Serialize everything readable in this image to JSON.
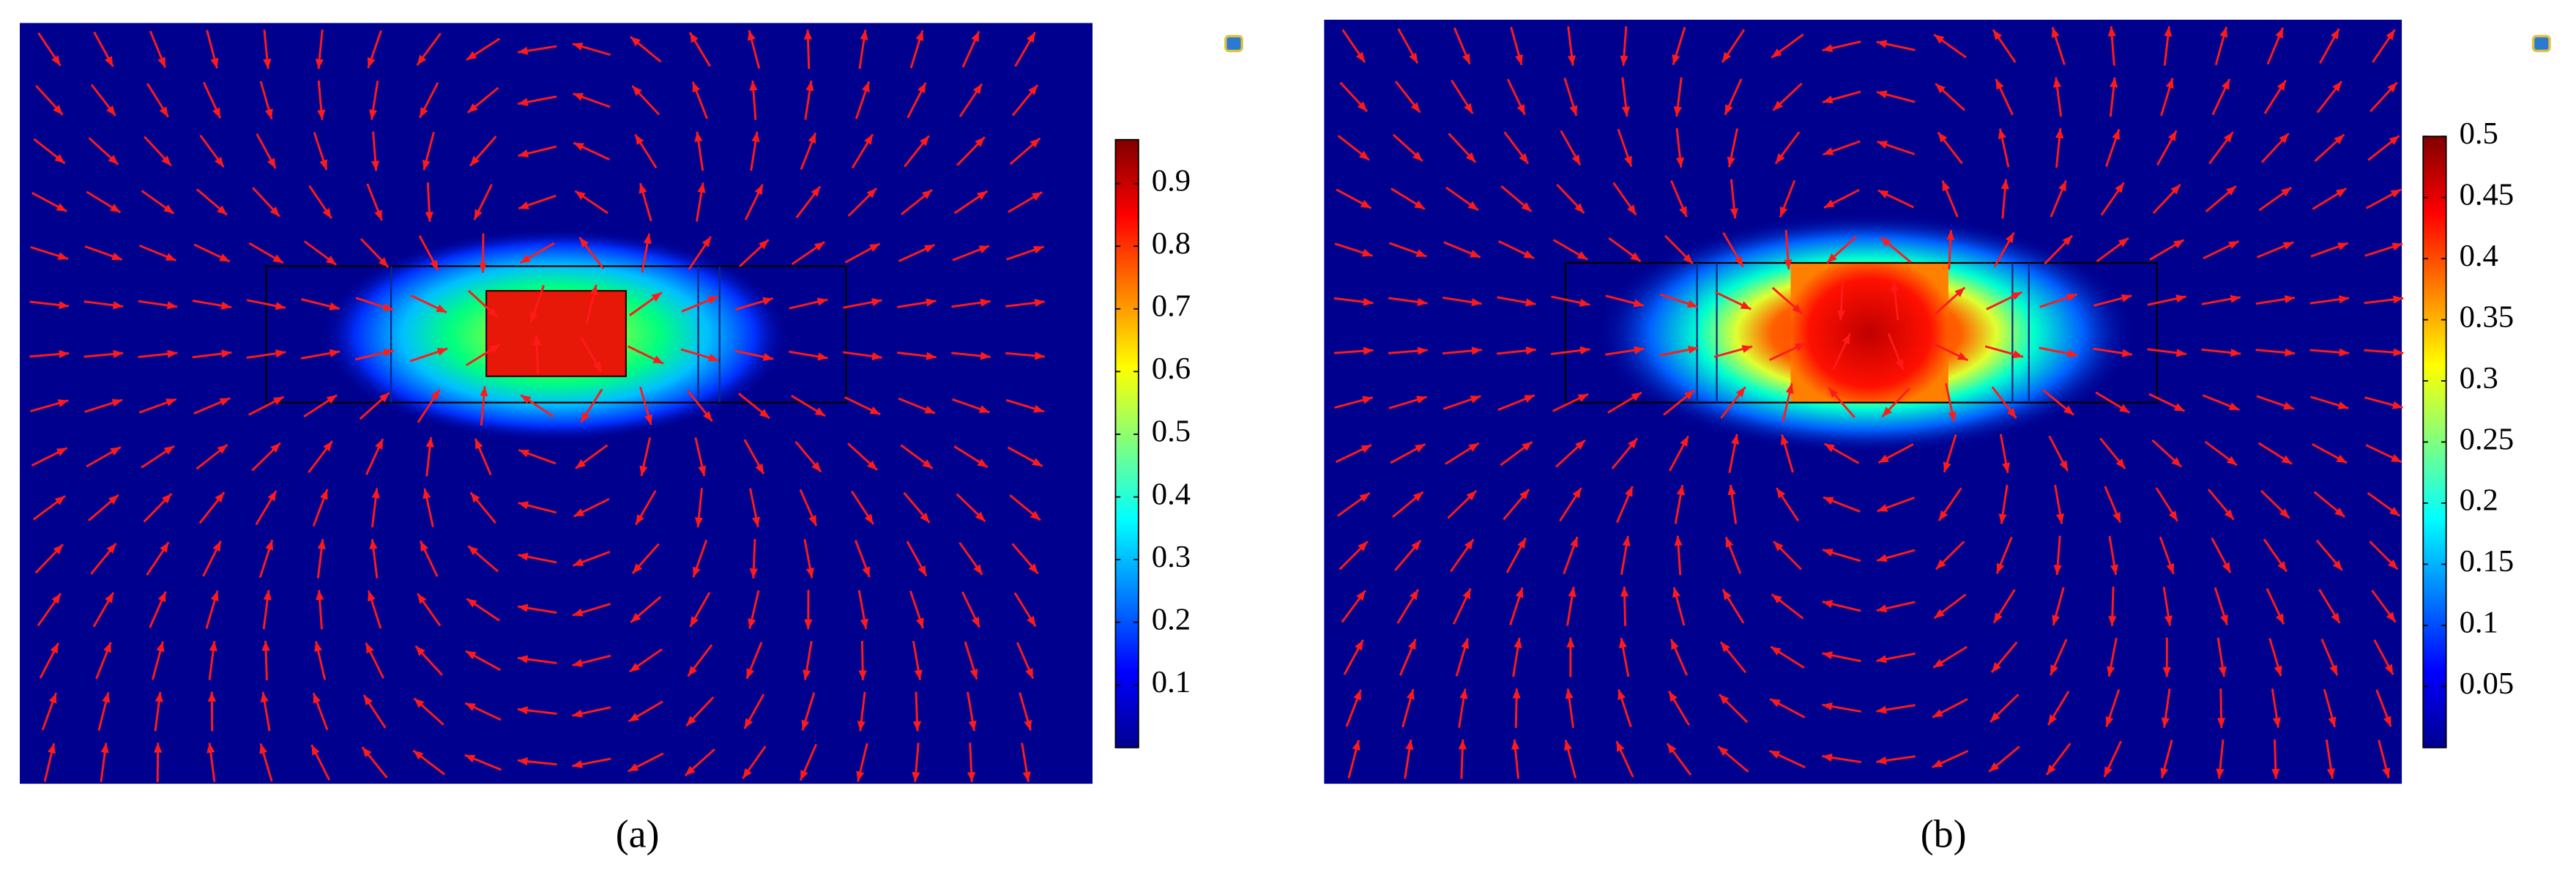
{
  "chart_data": [
    {
      "type": "heatmap",
      "caption": "(a)",
      "clim": [
        0,
        0.97
      ],
      "cticks": [
        0.1,
        0.2,
        0.3,
        0.4,
        0.5,
        0.6,
        0.7,
        0.8,
        0.9
      ]
    },
    {
      "type": "heatmap",
      "caption": "(b)",
      "clim": [
        0,
        0.5
      ],
      "cticks": [
        0.05,
        0.1,
        0.15,
        0.2,
        0.25,
        0.3,
        0.35,
        0.4,
        0.45,
        0.5
      ]
    }
  ]
}
